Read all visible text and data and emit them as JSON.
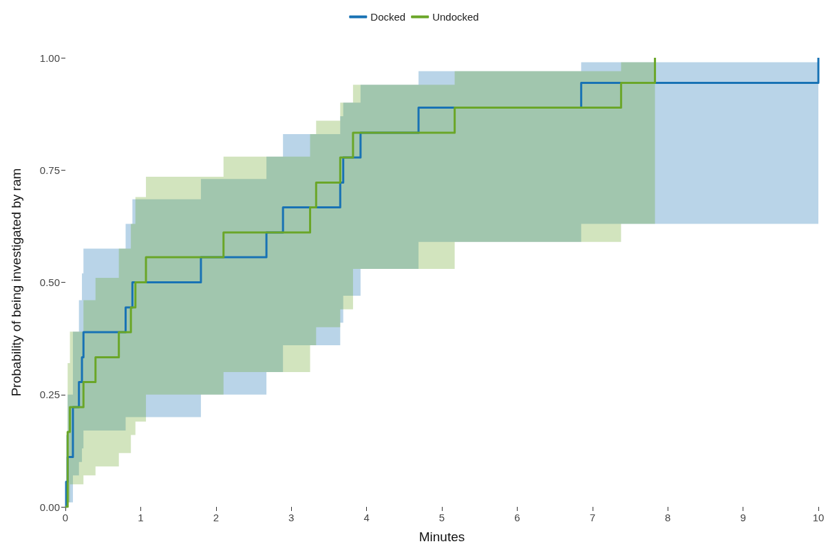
{
  "chart_data": {
    "type": "step",
    "xlabel": "Minutes",
    "ylabel": "Probability of being investigated by ram",
    "xlim": [
      0,
      10
    ],
    "xticks": [
      0,
      1,
      2,
      3,
      4,
      5,
      6,
      7,
      8,
      9,
      10
    ],
    "ylim": [
      0,
      1
    ],
    "yticks": [
      {
        "value": 0,
        "label": "0.00"
      },
      {
        "value": 0.25,
        "label": "0.25"
      },
      {
        "value": 0.5,
        "label": "0.50"
      },
      {
        "value": 0.75,
        "label": "0.75"
      },
      {
        "value": 1,
        "label": "1.00"
      }
    ],
    "grid": false,
    "legend": "top",
    "marker": "none",
    "line_style": "solid",
    "series": [
      {
        "name": "Docked",
        "color": "#1872b4",
        "x": [
          0,
          0.01,
          0.03,
          0.1,
          0.18,
          0.22,
          0.24,
          0.8,
          0.89,
          1.8,
          2.67,
          2.89,
          3.65,
          3.69,
          3.92,
          4.69,
          6.85,
          10
        ],
        "values": [
          0,
          0.056,
          0.111,
          0.222,
          0.278,
          0.333,
          0.389,
          0.444,
          0.5,
          0.556,
          0.611,
          0.667,
          0.722,
          0.778,
          0.833,
          0.889,
          0.944,
          1
        ],
        "lower": [
          0,
          0,
          0.01,
          0.07,
          0.1,
          0.13,
          0.17,
          0.2,
          0.2,
          0.25,
          0.3,
          0.36,
          0.41,
          0.47,
          0.53,
          0.59,
          0.63,
          0.63
        ],
        "upper": [
          0,
          0.16,
          0.25,
          0.39,
          0.46,
          0.52,
          0.575,
          0.63,
          0.685,
          0.73,
          0.78,
          0.83,
          0.87,
          0.9,
          0.94,
          0.97,
          0.99,
          0.99
        ]
      },
      {
        "name": "Undocked",
        "color": "#6aa628",
        "x": [
          0,
          0.03,
          0.06,
          0.24,
          0.4,
          0.71,
          0.87,
          0.93,
          1.07,
          2.1,
          3.25,
          3.33,
          3.65,
          3.82,
          5.17,
          7.38,
          7.83
        ],
        "values": [
          0,
          0.167,
          0.222,
          0.278,
          0.333,
          0.389,
          0.444,
          0.5,
          0.556,
          0.611,
          0.667,
          0.722,
          0.778,
          0.833,
          0.889,
          0.944,
          1
        ],
        "lower": [
          0,
          0.01,
          0.05,
          0.07,
          0.09,
          0.12,
          0.16,
          0.19,
          0.25,
          0.3,
          0.36,
          0.4,
          0.44,
          0.53,
          0.59,
          0.63,
          0.63
        ],
        "upper": [
          0,
          0.32,
          0.39,
          0.46,
          0.51,
          0.575,
          0.63,
          0.69,
          0.735,
          0.78,
          0.83,
          0.86,
          0.9,
          0.94,
          0.97,
          0.99,
          0.99
        ]
      }
    ]
  }
}
